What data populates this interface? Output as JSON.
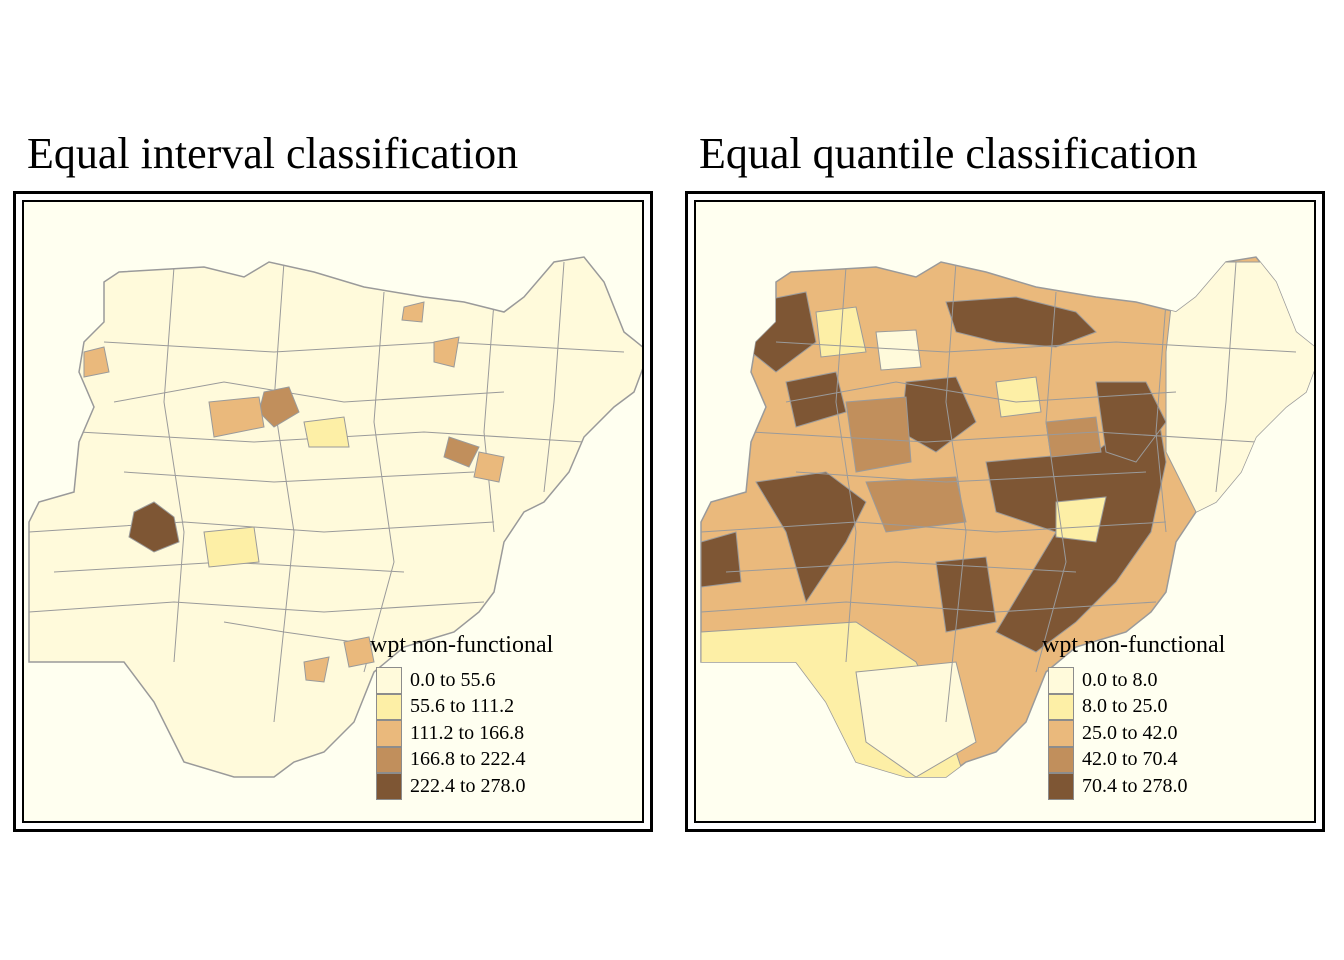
{
  "maps": [
    {
      "title": "Equal interval classification",
      "legend": {
        "title": "wpt non-functional",
        "classes": [
          {
            "label": "0.0 to 55.6",
            "color": "#fffadb"
          },
          {
            "label": "55.6 to 111.2",
            "color": "#fdefa6"
          },
          {
            "label": "111.2 to 166.8",
            "color": "#eab97c"
          },
          {
            "label": "166.8 to 222.4",
            "color": "#c18f5c"
          },
          {
            "label": "222.4 to 278.0",
            "color": "#7e5634"
          }
        ]
      }
    },
    {
      "title": "Equal quantile classification",
      "legend": {
        "title": "wpt non-functional",
        "classes": [
          {
            "label": "0.0 to 8.0",
            "color": "#fffadb"
          },
          {
            "label": "8.0 to 25.0",
            "color": "#fdefa6"
          },
          {
            "label": "25.0 to 42.0",
            "color": "#eab97c"
          },
          {
            "label": "42.0 to 70.4",
            "color": "#c18f5c"
          },
          {
            "label": "70.4 to 278.0",
            "color": "#7e5634"
          }
        ]
      }
    }
  ],
  "colors": {
    "map_background": "#fffff0",
    "boundary": "#9a9a9a"
  }
}
